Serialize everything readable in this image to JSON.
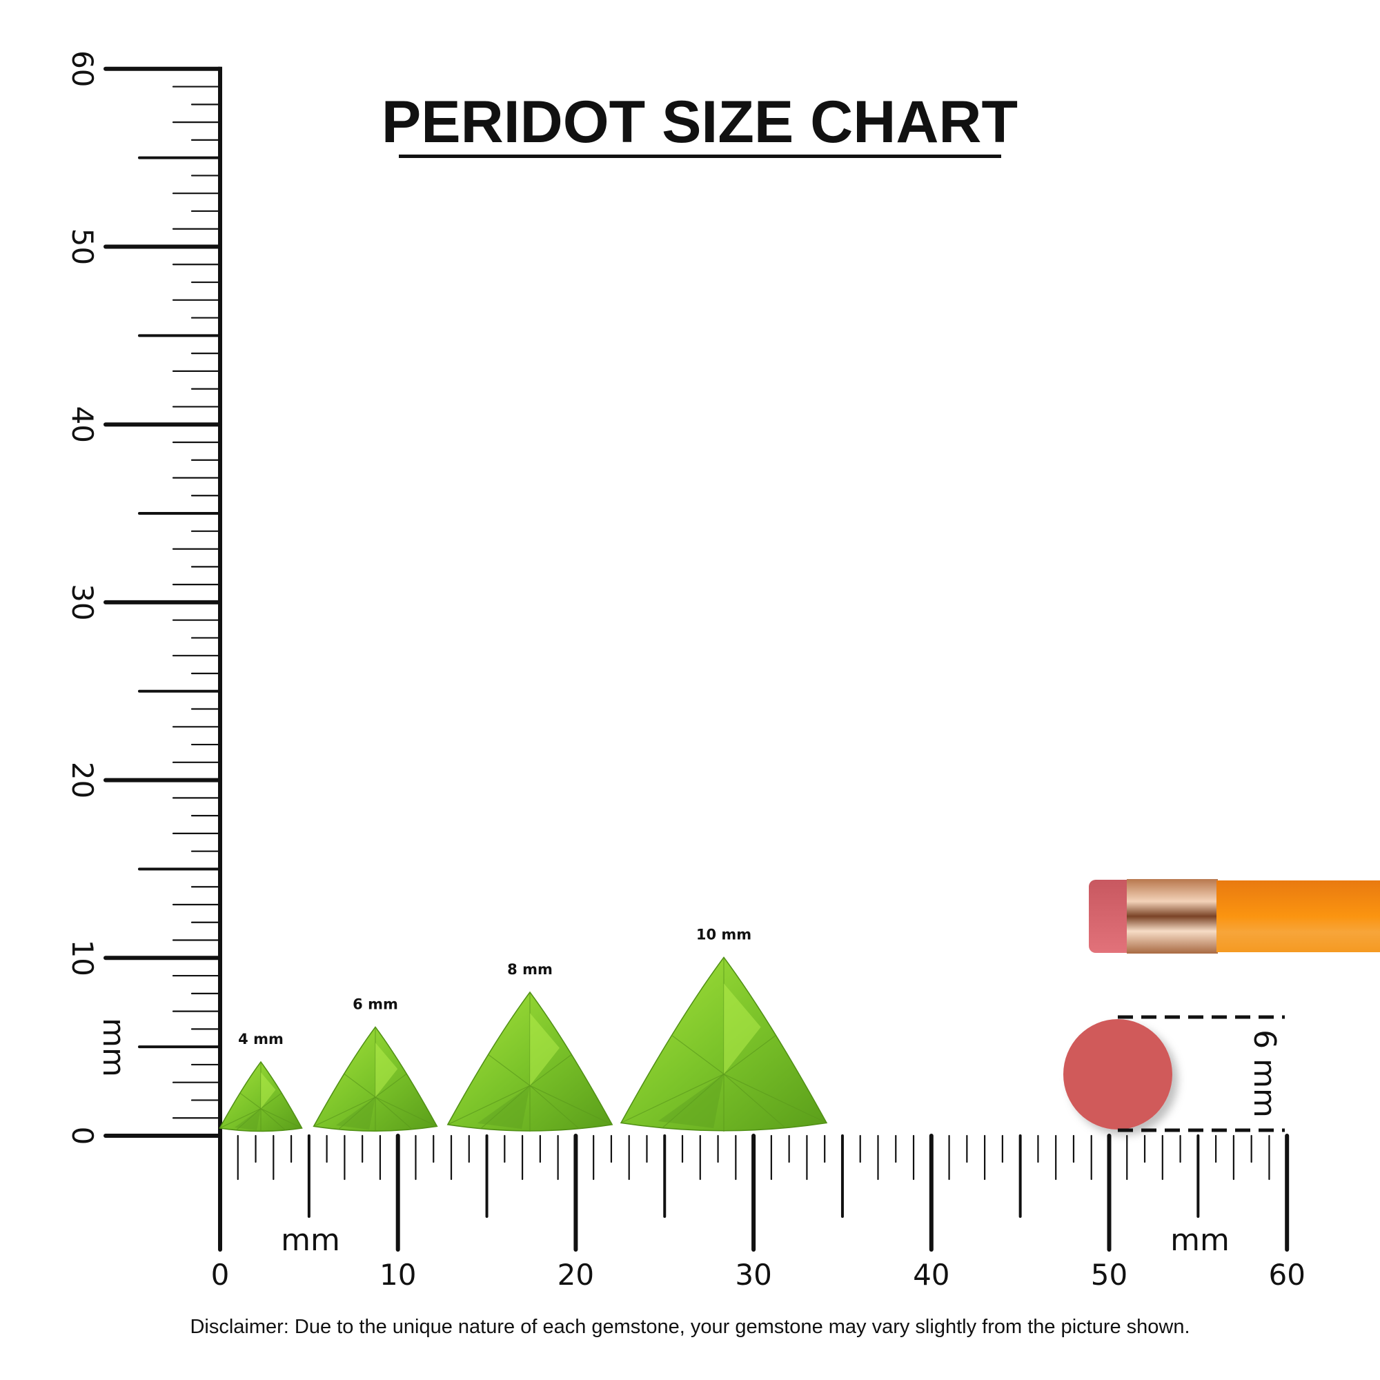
{
  "title": "PERIDOT SIZE CHART",
  "disclaimer": "Disclaimer: Due to the unique nature of each gemstone, your gemstone may vary slightly from the picture shown.",
  "ruler": {
    "unit_label": "mm",
    "range_mm": [
      0,
      60
    ],
    "vertical_labels": [
      "0",
      "10",
      "20",
      "30",
      "40",
      "50",
      "60"
    ],
    "horizontal_labels": [
      "0",
      "10",
      "20",
      "30",
      "40",
      "50",
      "60"
    ]
  },
  "gems": [
    {
      "label": "4 mm",
      "size_mm": 4
    },
    {
      "label": "6 mm",
      "size_mm": 6
    },
    {
      "label": "8 mm",
      "size_mm": 8
    },
    {
      "label": "10 mm",
      "size_mm": 10
    }
  ],
  "comparison": {
    "eraser_label": "6 mm",
    "eraser_size_mm": 6
  },
  "colors": {
    "gem": "#7cc42a",
    "gem_dark": "#4f8f14",
    "eraser": "#d05a5a",
    "pencil": "#f7901e",
    "ferrule": "#d9a47a"
  }
}
